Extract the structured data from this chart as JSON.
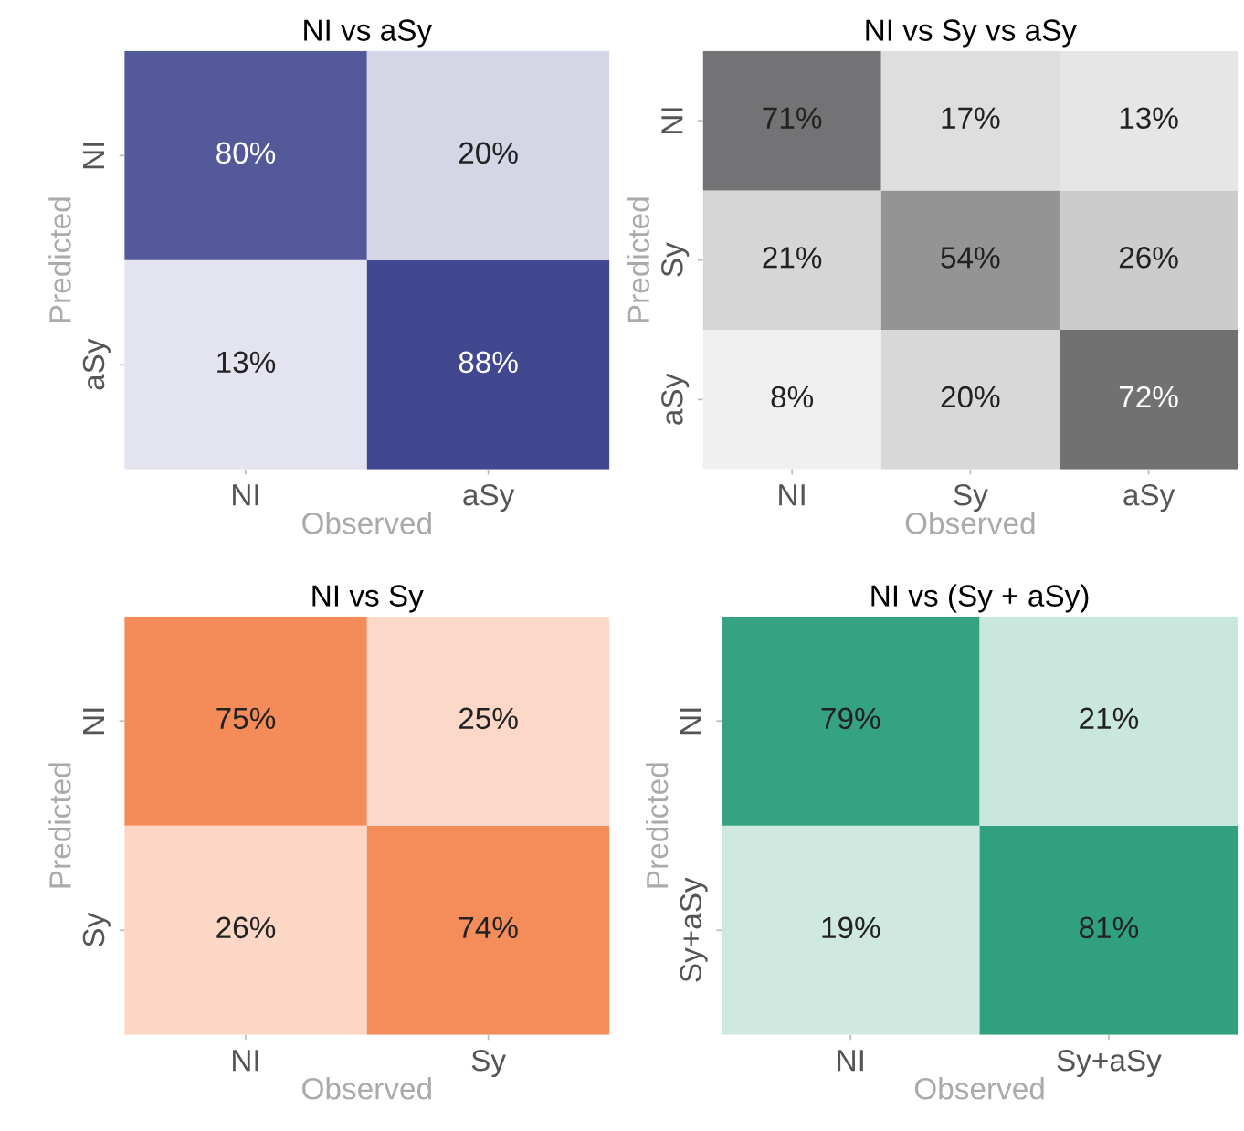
{
  "chart_data": [
    {
      "type": "heatmap",
      "title": "NI vs aSy",
      "xlabel": "Observed",
      "ylabel": "Predicted",
      "categories": [
        "NI",
        "aSy"
      ],
      "y_categories": [
        "NI",
        "aSy"
      ],
      "color": "#283080",
      "cells": [
        [
          80,
          20
        ],
        [
          13,
          88
        ]
      ],
      "cell_labels": [
        [
          "80%",
          "20%"
        ],
        [
          "13%",
          "88%"
        ]
      ]
    },
    {
      "type": "heatmap",
      "title": "NI vs Sy vs aSy",
      "xlabel": "Observed",
      "ylabel": "Predicted",
      "categories": [
        "NI",
        "Sy",
        "aSy"
      ],
      "y_categories": [
        "NI",
        "Sy",
        "aSy"
      ],
      "color": "#3a3a3c",
      "cells": [
        [
          71,
          17,
          13
        ],
        [
          21,
          54,
          26
        ],
        [
          8,
          20,
          72
        ]
      ],
      "cell_labels": [
        [
          "71%",
          "17%",
          "13%"
        ],
        [
          "21%",
          "54%",
          "26%"
        ],
        [
          "8%",
          "20%",
          "72%"
        ]
      ]
    },
    {
      "type": "heatmap",
      "title": "NI vs Sy",
      "xlabel": "Observed",
      "ylabel": "Predicted",
      "categories": [
        "NI",
        "Sy"
      ],
      "y_categories": [
        "NI",
        "Sy"
      ],
      "color": "#f26522",
      "cells": [
        [
          75,
          25
        ],
        [
          26,
          74
        ]
      ],
      "cell_labels": [
        [
          "75%",
          "25%"
        ],
        [
          "26%",
          "74%"
        ]
      ]
    },
    {
      "type": "heatmap",
      "title": "NI vs (Sy + aSy)",
      "xlabel": "Observed",
      "ylabel": "Predicted",
      "categories": [
        "NI",
        "Sy+aSy"
      ],
      "y_categories": [
        "NI",
        "Sy+aSy"
      ],
      "color": "#008a60",
      "cells": [
        [
          79,
          21
        ],
        [
          19,
          81
        ]
      ],
      "cell_labels": [
        [
          "79%",
          "21%"
        ],
        [
          "19%",
          "81%"
        ]
      ]
    }
  ]
}
